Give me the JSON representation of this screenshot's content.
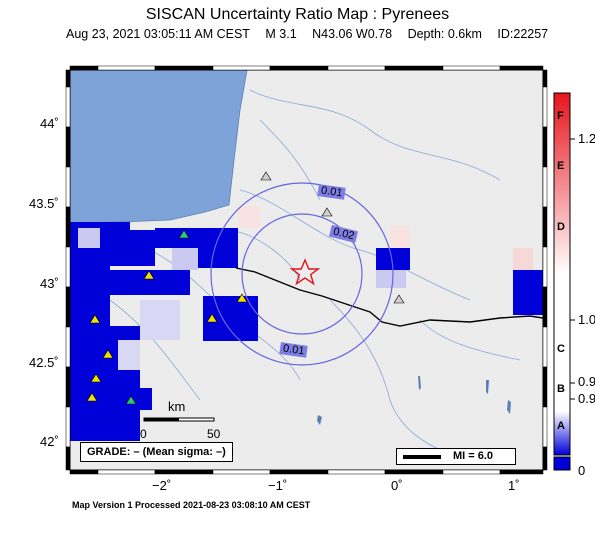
{
  "title": "SISCAN Uncertainty Ratio Map : Pyrenees",
  "subtitle": {
    "datetime": "Aug 23, 2021 03:05:11 AM CEST",
    "magnitude": "M 3.1",
    "location": "N43.06 W0.78",
    "depth": "Depth: 0.6km",
    "id": "ID:22257"
  },
  "axes": {
    "lat_labels": [
      "44˚",
      "43.5˚",
      "43˚",
      "42.5˚",
      "42˚"
    ],
    "lon_labels": [
      "−2˚",
      "−1˚",
      "0˚",
      "1˚"
    ]
  },
  "contours": [
    "0.01",
    "0.02",
    "0.01"
  ],
  "scale": {
    "unit": "km",
    "ticks": [
      "0",
      "50"
    ]
  },
  "grade": "GRADE: – (Mean sigma: –)",
  "mi_legend": "MI = 6.0",
  "colorbar": {
    "letters": [
      "F",
      "E",
      "D",
      "C",
      "B",
      "A"
    ],
    "values": [
      "1.2",
      "1.0",
      "0.9",
      "0.9",
      "0"
    ],
    "colors": {
      "high": "#e8141c",
      "mid": "#ffffff",
      "low": "#0000d8"
    }
  },
  "footer": "Map Version 1 Processed 2021-08-23 03:08:10 AM CEST",
  "epicenter": {
    "lat": 43.06,
    "lon": -0.78
  }
}
